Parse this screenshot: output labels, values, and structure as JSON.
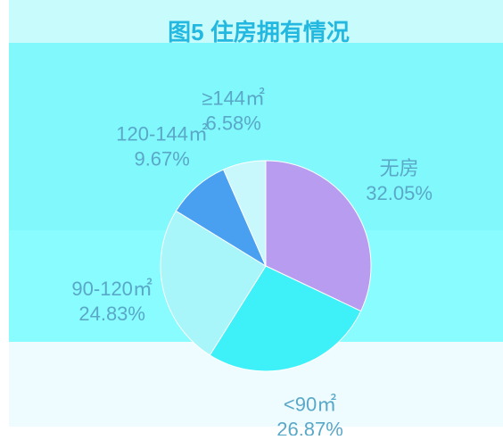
{
  "chart_data": {
    "type": "pie",
    "title": "图5 住房拥有情况",
    "categories": [
      "无房",
      "<90㎡",
      "90-120㎡",
      "120-144㎡",
      "≥144㎡"
    ],
    "values": [
      32.05,
      26.87,
      24.83,
      9.67,
      6.58
    ],
    "value_labels": [
      "32.05%",
      "26.87%",
      "24.83%",
      "9.67%",
      "6.58%"
    ],
    "colors": [
      "#b89cf0",
      "#3ef0f8",
      "#a8f6fa",
      "#4aa0f0",
      "#c8f8fc"
    ]
  }
}
